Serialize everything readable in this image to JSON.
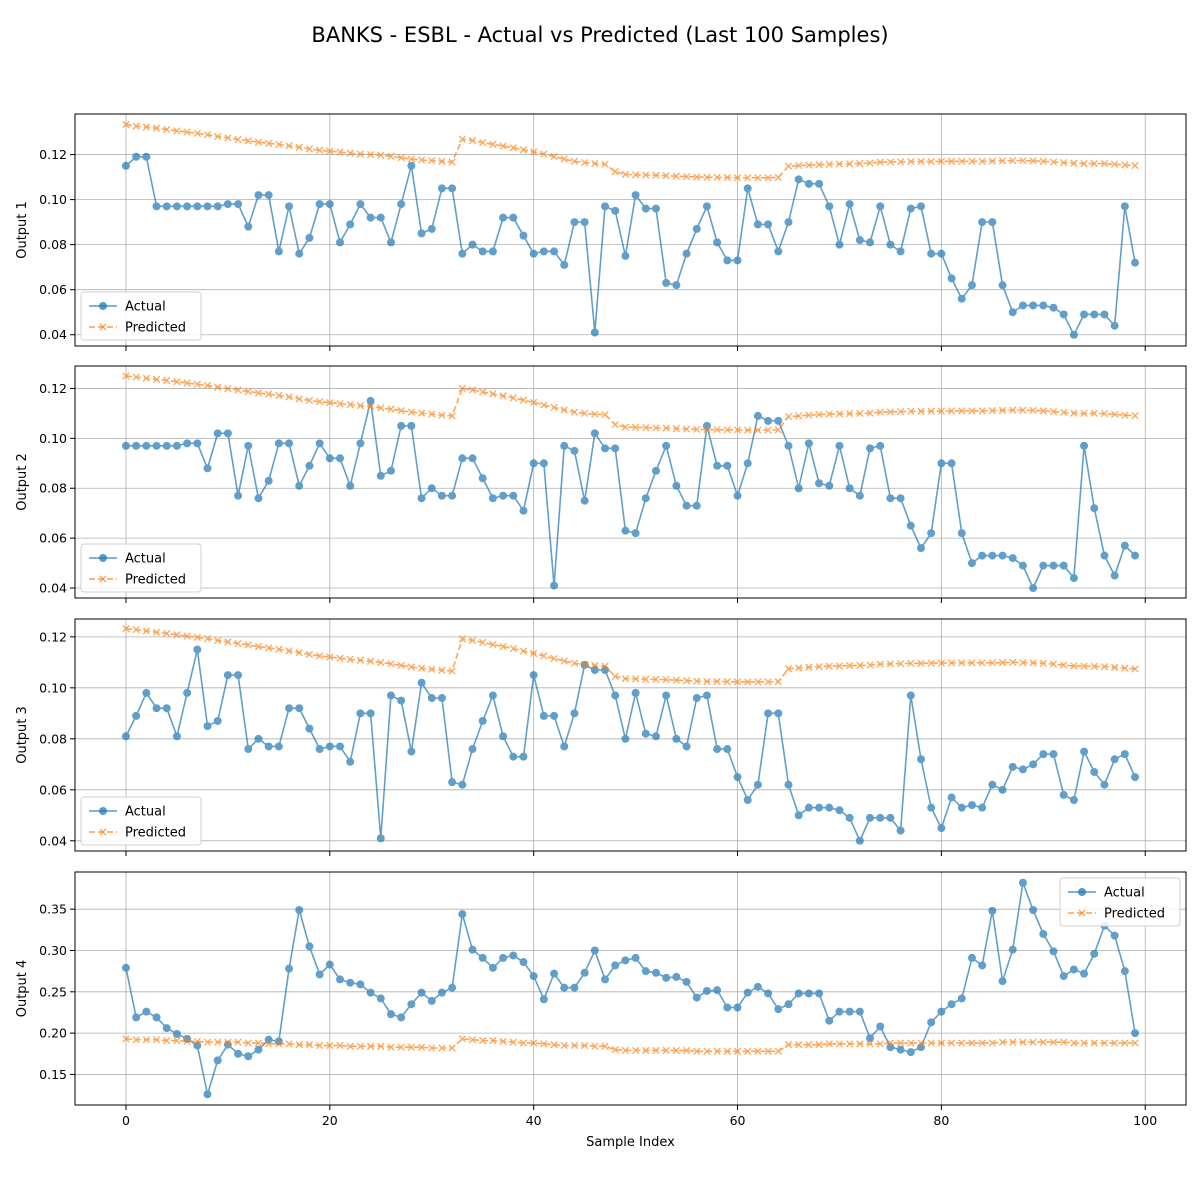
{
  "title": "BANKS - ESBL - Actual vs Predicted (Last 100 Samples)",
  "colors": {
    "actual": "#1f77b4",
    "predicted": "#ff7f0e",
    "grid": "#b0b0b0"
  },
  "chart_data": [
    {
      "type": "line",
      "ylabel": "Output 1",
      "xlabel": "",
      "xlim": [
        -5,
        104
      ],
      "ylim": [
        0.035,
        0.138
      ],
      "xticks": [
        0,
        20,
        40,
        60,
        80,
        100
      ],
      "yticks": [
        0.04,
        0.06,
        0.08,
        0.1,
        0.12
      ],
      "ytick_labels": [
        "0.04",
        "0.06",
        "0.08",
        "0.10",
        "0.12"
      ],
      "legend": "lower-left",
      "grid": true,
      "series": [
        {
          "name": "Actual",
          "marker": "circle",
          "values": [
            0.115,
            0.119,
            0.119,
            0.097,
            0.097,
            0.097,
            0.097,
            0.097,
            0.097,
            0.097,
            0.098,
            0.098,
            0.088,
            0.102,
            0.102,
            0.077,
            0.097,
            0.076,
            0.083,
            0.098,
            0.098,
            0.081,
            0.089,
            0.098,
            0.092,
            0.092,
            0.081,
            0.098,
            0.115,
            0.085,
            0.087,
            0.105,
            0.105,
            0.076,
            0.08,
            0.077,
            0.077,
            0.092,
            0.092,
            0.084,
            0.076,
            0.077,
            0.077,
            0.071,
            0.09,
            0.09,
            0.041,
            0.097,
            0.095,
            0.075,
            0.102,
            0.096,
            0.096,
            0.063,
            0.062,
            0.076,
            0.087,
            0.097,
            0.081,
            0.073,
            0.073,
            0.105,
            0.089,
            0.089,
            0.077,
            0.09,
            0.109,
            0.107,
            0.107,
            0.097,
            0.08,
            0.098,
            0.082,
            0.081,
            0.097,
            0.08,
            0.077,
            0.096,
            0.097,
            0.076,
            0.076,
            0.065,
            0.056,
            0.062,
            0.09,
            0.09,
            0.062,
            0.05,
            0.053,
            0.053,
            0.053,
            0.052,
            0.049,
            0.04,
            0.049,
            0.049,
            0.049,
            0.044,
            0.097,
            0.072
          ]
        },
        {
          "name": "Predicted",
          "marker": "x",
          "values": [
            0.1333,
            0.1326,
            0.1322,
            0.1317,
            0.1311,
            0.1305,
            0.13,
            0.1294,
            0.1288,
            0.128,
            0.1274,
            0.1267,
            0.1261,
            0.1255,
            0.125,
            0.1245,
            0.1239,
            0.1232,
            0.1225,
            0.1219,
            0.1215,
            0.1211,
            0.1206,
            0.1202,
            0.12,
            0.1197,
            0.1192,
            0.1186,
            0.118,
            0.1176,
            0.1173,
            0.117,
            0.1167,
            0.1268,
            0.1262,
            0.1253,
            0.1245,
            0.1238,
            0.123,
            0.1221,
            0.1212,
            0.1202,
            0.1191,
            0.118,
            0.117,
            0.1164,
            0.116,
            0.1157,
            0.1124,
            0.1112,
            0.111,
            0.1109,
            0.1108,
            0.1106,
            0.1104,
            0.1102,
            0.11,
            0.1099,
            0.1099,
            0.1098,
            0.1097,
            0.1097,
            0.1097,
            0.1097,
            0.1098,
            0.1149,
            0.1151,
            0.1153,
            0.1155,
            0.1157,
            0.1158,
            0.1159,
            0.116,
            0.1162,
            0.1166,
            0.1167,
            0.1168,
            0.1169,
            0.1169,
            0.1169,
            0.117,
            0.117,
            0.117,
            0.117,
            0.117,
            0.1171,
            0.1172,
            0.1173,
            0.1173,
            0.1172,
            0.117,
            0.1167,
            0.1164,
            0.1161,
            0.116,
            0.116,
            0.116,
            0.1157,
            0.1154,
            0.1151
          ]
        }
      ]
    },
    {
      "type": "line",
      "ylabel": "Output 2",
      "xlabel": "",
      "xlim": [
        -5,
        104
      ],
      "ylim": [
        0.036,
        0.129
      ],
      "xticks": [
        0,
        20,
        40,
        60,
        80,
        100
      ],
      "yticks": [
        0.04,
        0.06,
        0.08,
        0.1,
        0.12
      ],
      "ytick_labels": [
        "0.04",
        "0.06",
        "0.08",
        "0.10",
        "0.12"
      ],
      "legend": "lower-left",
      "grid": true,
      "series": [
        {
          "name": "Actual",
          "marker": "circle",
          "values": [
            0.097,
            0.097,
            0.097,
            0.097,
            0.097,
            0.097,
            0.098,
            0.098,
            0.088,
            0.102,
            0.102,
            0.077,
            0.097,
            0.076,
            0.083,
            0.098,
            0.098,
            0.081,
            0.089,
            0.098,
            0.092,
            0.092,
            0.081,
            0.098,
            0.115,
            0.085,
            0.087,
            0.105,
            0.105,
            0.076,
            0.08,
            0.077,
            0.077,
            0.092,
            0.092,
            0.084,
            0.076,
            0.077,
            0.077,
            0.071,
            0.09,
            0.09,
            0.041,
            0.097,
            0.095,
            0.075,
            0.102,
            0.096,
            0.096,
            0.063,
            0.062,
            0.076,
            0.087,
            0.097,
            0.081,
            0.073,
            0.073,
            0.105,
            0.089,
            0.089,
            0.077,
            0.09,
            0.109,
            0.107,
            0.107,
            0.097,
            0.08,
            0.098,
            0.082,
            0.081,
            0.097,
            0.08,
            0.077,
            0.096,
            0.097,
            0.076,
            0.076,
            0.065,
            0.056,
            0.062,
            0.09,
            0.09,
            0.062,
            0.05,
            0.053,
            0.053,
            0.053,
            0.052,
            0.049,
            0.04,
            0.049,
            0.049,
            0.049,
            0.044,
            0.097,
            0.072,
            0.053,
            0.045,
            0.057,
            0.053
          ]
        },
        {
          "name": "Predicted",
          "marker": "x",
          "values": [
            0.125,
            0.1246,
            0.1241,
            0.1236,
            0.1232,
            0.1227,
            0.1222,
            0.1217,
            0.1212,
            0.1205,
            0.1199,
            0.1194,
            0.1188,
            0.1182,
            0.1177,
            0.1172,
            0.1166,
            0.1158,
            0.1152,
            0.1147,
            0.1143,
            0.1139,
            0.1135,
            0.1131,
            0.1127,
            0.1122,
            0.1117,
            0.1111,
            0.1105,
            0.1101,
            0.1097,
            0.1093,
            0.109,
            0.12,
            0.1194,
            0.1186,
            0.1178,
            0.117,
            0.1162,
            0.1153,
            0.1144,
            0.1134,
            0.1124,
            0.1114,
            0.1105,
            0.11,
            0.1097,
            0.1095,
            0.1055,
            0.1045,
            0.1044,
            0.1043,
            0.1042,
            0.1041,
            0.1039,
            0.1037,
            0.1036,
            0.1035,
            0.1035,
            0.1034,
            0.1034,
            0.1033,
            0.1033,
            0.1033,
            0.1034,
            0.1087,
            0.109,
            0.1093,
            0.1095,
            0.1097,
            0.1098,
            0.1099,
            0.11,
            0.1101,
            0.1105,
            0.1106,
            0.1107,
            0.1108,
            0.1108,
            0.1109,
            0.1109,
            0.111,
            0.111,
            0.111,
            0.111,
            0.1111,
            0.1112,
            0.1113,
            0.1113,
            0.1112,
            0.111,
            0.1107,
            0.1104,
            0.1101,
            0.11,
            0.11,
            0.1099,
            0.1096,
            0.1093,
            0.1091
          ]
        }
      ]
    },
    {
      "type": "line",
      "ylabel": "Output 3",
      "xlabel": "",
      "xlim": [
        -5,
        104
      ],
      "ylim": [
        0.036,
        0.127
      ],
      "xticks": [
        0,
        20,
        40,
        60,
        80,
        100
      ],
      "yticks": [
        0.04,
        0.06,
        0.08,
        0.1,
        0.12
      ],
      "ytick_labels": [
        "0.04",
        "0.06",
        "0.08",
        "0.10",
        "0.12"
      ],
      "legend": "lower-left",
      "grid": true,
      "series": [
        {
          "name": "Actual",
          "marker": "circle",
          "values": [
            0.081,
            0.089,
            0.098,
            0.092,
            0.092,
            0.081,
            0.098,
            0.115,
            0.085,
            0.087,
            0.105,
            0.105,
            0.076,
            0.08,
            0.077,
            0.077,
            0.092,
            0.092,
            0.084,
            0.076,
            0.077,
            0.077,
            0.071,
            0.09,
            0.09,
            0.041,
            0.097,
            0.095,
            0.075,
            0.102,
            0.096,
            0.096,
            0.063,
            0.062,
            0.076,
            0.087,
            0.097,
            0.081,
            0.073,
            0.073,
            0.105,
            0.089,
            0.089,
            0.077,
            0.09,
            0.109,
            0.107,
            0.107,
            0.097,
            0.08,
            0.098,
            0.082,
            0.081,
            0.097,
            0.08,
            0.077,
            0.096,
            0.097,
            0.076,
            0.076,
            0.065,
            0.056,
            0.062,
            0.09,
            0.09,
            0.062,
            0.05,
            0.053,
            0.053,
            0.053,
            0.052,
            0.049,
            0.04,
            0.049,
            0.049,
            0.049,
            0.044,
            0.097,
            0.072,
            0.053,
            0.045,
            0.057,
            0.053,
            0.054,
            0.053,
            0.062,
            0.06,
            0.069,
            0.068,
            0.07,
            0.074,
            0.074,
            0.058,
            0.056,
            0.075,
            0.067,
            0.062,
            0.072,
            0.074,
            0.065
          ]
        },
        {
          "name": "Predicted",
          "marker": "x",
          "values": [
            0.1232,
            0.1228,
            0.1223,
            0.1218,
            0.1213,
            0.1208,
            0.1203,
            0.1198,
            0.1193,
            0.1186,
            0.118,
            0.1174,
            0.1168,
            0.1162,
            0.1157,
            0.1151,
            0.1145,
            0.1138,
            0.1131,
            0.1125,
            0.1121,
            0.1116,
            0.1112,
            0.1108,
            0.1104,
            0.1099,
            0.1094,
            0.1088,
            0.1082,
            0.1077,
            0.1073,
            0.1069,
            0.1066,
            0.1192,
            0.1186,
            0.1178,
            0.117,
            0.1162,
            0.1154,
            0.1144,
            0.1135,
            0.1125,
            0.1115,
            0.1105,
            0.1096,
            0.1091,
            0.1088,
            0.1085,
            0.1045,
            0.1036,
            0.1035,
            0.1034,
            0.1033,
            0.1032,
            0.103,
            0.1028,
            0.1026,
            0.1025,
            0.1025,
            0.1024,
            0.1023,
            0.1023,
            0.1023,
            0.1023,
            0.1024,
            0.1075,
            0.1078,
            0.1081,
            0.1083,
            0.1085,
            0.1086,
            0.1087,
            0.1088,
            0.1089,
            0.1093,
            0.1094,
            0.1095,
            0.1096,
            0.1096,
            0.1097,
            0.1097,
            0.1098,
            0.1098,
            0.1098,
            0.1098,
            0.1098,
            0.1099,
            0.11,
            0.1099,
            0.1098,
            0.1096,
            0.1093,
            0.1089,
            0.1086,
            0.1085,
            0.1084,
            0.1083,
            0.108,
            0.1077,
            0.1074
          ]
        }
      ]
    },
    {
      "type": "line",
      "ylabel": "Output 4",
      "xlabel": "Sample Index",
      "xlim": [
        -5,
        104
      ],
      "ylim": [
        0.113,
        0.395
      ],
      "xticks": [
        0,
        20,
        40,
        60,
        80,
        100
      ],
      "yticks": [
        0.15,
        0.2,
        0.25,
        0.3,
        0.35
      ],
      "ytick_labels": [
        "0.15",
        "0.20",
        "0.25",
        "0.30",
        "0.35"
      ],
      "legend": "top-right",
      "grid": true,
      "series": [
        {
          "name": "Actual",
          "marker": "circle",
          "values": [
            0.279,
            0.219,
            0.226,
            0.219,
            0.206,
            0.199,
            0.193,
            0.185,
            0.126,
            0.167,
            0.186,
            0.175,
            0.172,
            0.18,
            0.192,
            0.19,
            0.278,
            0.349,
            0.305,
            0.271,
            0.283,
            0.265,
            0.261,
            0.259,
            0.249,
            0.242,
            0.223,
            0.219,
            0.235,
            0.249,
            0.239,
            0.249,
            0.255,
            0.344,
            0.301,
            0.291,
            0.279,
            0.291,
            0.294,
            0.286,
            0.269,
            0.241,
            0.272,
            0.255,
            0.255,
            0.273,
            0.3,
            0.265,
            0.282,
            0.288,
            0.291,
            0.275,
            0.273,
            0.267,
            0.268,
            0.262,
            0.243,
            0.251,
            0.252,
            0.231,
            0.231,
            0.249,
            0.256,
            0.248,
            0.229,
            0.235,
            0.248,
            0.248,
            0.248,
            0.215,
            0.226,
            0.226,
            0.226,
            0.194,
            0.208,
            0.183,
            0.18,
            0.177,
            0.183,
            0.213,
            0.226,
            0.235,
            0.242,
            0.291,
            0.282,
            0.348,
            0.263,
            0.301,
            0.382,
            0.349,
            0.32,
            0.299,
            0.269,
            0.277,
            0.272,
            0.296,
            0.33,
            0.318,
            0.275,
            0.2
          ]
        },
        {
          "name": "Predicted",
          "marker": "x",
          "values": [
            0.193,
            0.192,
            0.192,
            0.192,
            0.191,
            0.191,
            0.19,
            0.19,
            0.189,
            0.189,
            0.189,
            0.189,
            0.188,
            0.188,
            0.187,
            0.187,
            0.187,
            0.186,
            0.186,
            0.185,
            0.185,
            0.185,
            0.184,
            0.184,
            0.184,
            0.184,
            0.183,
            0.183,
            0.183,
            0.183,
            0.182,
            0.182,
            0.182,
            0.193,
            0.192,
            0.191,
            0.191,
            0.19,
            0.189,
            0.188,
            0.188,
            0.187,
            0.186,
            0.185,
            0.185,
            0.185,
            0.184,
            0.184,
            0.18,
            0.179,
            0.179,
            0.179,
            0.179,
            0.179,
            0.179,
            0.179,
            0.178,
            0.178,
            0.178,
            0.178,
            0.178,
            0.178,
            0.178,
            0.178,
            0.178,
            0.186,
            0.186,
            0.186,
            0.186,
            0.187,
            0.187,
            0.187,
            0.187,
            0.187,
            0.187,
            0.188,
            0.188,
            0.188,
            0.188,
            0.188,
            0.188,
            0.188,
            0.188,
            0.188,
            0.188,
            0.188,
            0.189,
            0.189,
            0.189,
            0.189,
            0.189,
            0.189,
            0.189,
            0.188,
            0.188,
            0.188,
            0.188,
            0.188,
            0.188,
            0.188
          ]
        }
      ]
    }
  ]
}
